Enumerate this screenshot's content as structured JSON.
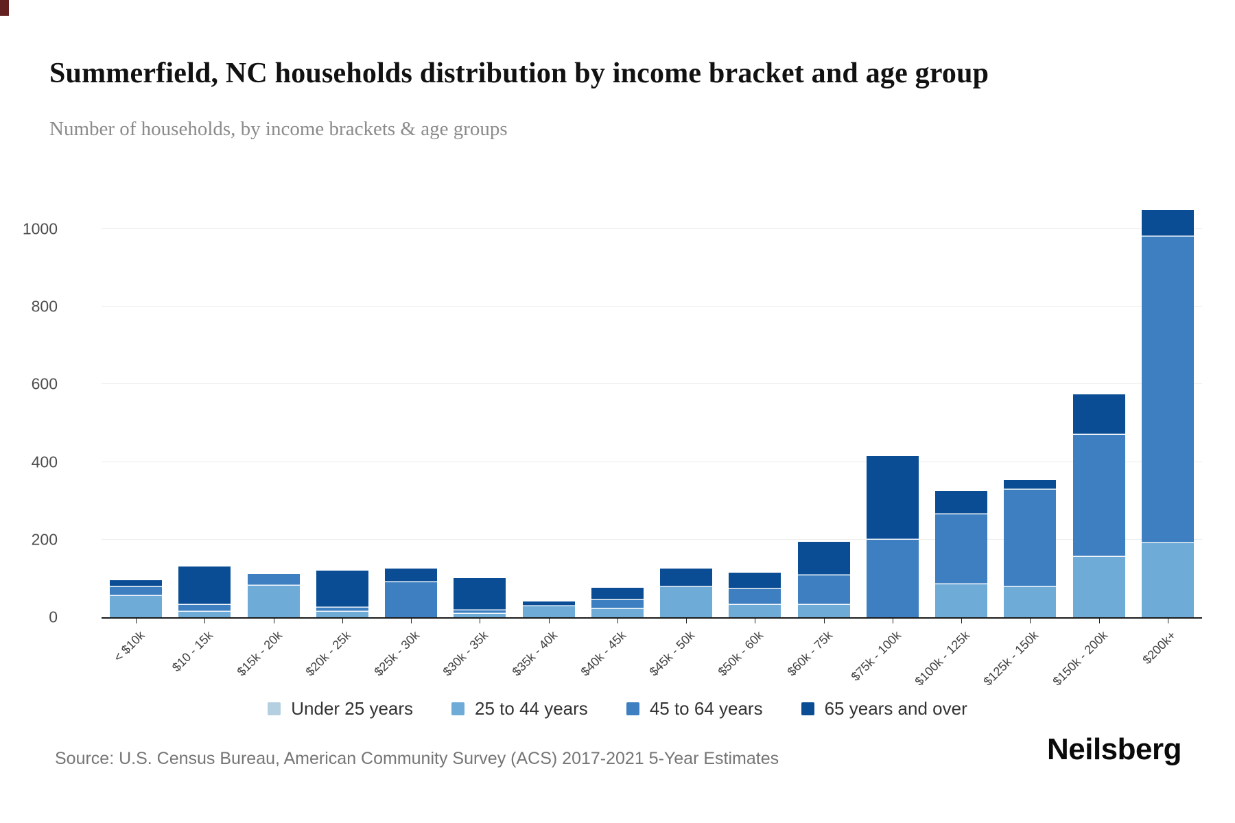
{
  "page": {
    "background": "#ffffff"
  },
  "header": {
    "title": "Summerfield, NC households distribution by income bracket and age group",
    "subtitle": "Number of households, by income brackets & age groups"
  },
  "source": {
    "text": "Source: U.S. Census Bureau, American Community Survey (ACS) 2017-2021 5-Year Estimates"
  },
  "branding": {
    "logo_text": "Neilsberg"
  },
  "chart_data": {
    "type": "bar",
    "stacked": true,
    "title": "Summerfield, NC households distribution by income bracket and age group",
    "subtitle": "Number of households, by income brackets & age groups",
    "xlabel": "",
    "ylabel": "",
    "grid": "horizontal",
    "legend_position": "bottom",
    "yticks": [
      0,
      200,
      400,
      600,
      800,
      1000
    ],
    "ylim": [
      0,
      1060
    ],
    "categories": [
      "< $10k",
      "$10 - 15k",
      "$15k - 20k",
      "$20k - 25k",
      "$25k - 30k",
      "$30k - 35k",
      "$35k - 40k",
      "$40k - 45k",
      "$45k - 50k",
      "$50k - 60k",
      "$60k - 75k",
      "$75k - 100k",
      "$100k - 125k",
      "$125k - 150k",
      "$150k - 200k",
      "$200k+"
    ],
    "series": [
      {
        "name": "Under 25 years",
        "color": "#b4cfe0",
        "values": [
          0,
          0,
          0,
          0,
          0,
          0,
          0,
          0,
          0,
          0,
          0,
          0,
          0,
          0,
          0,
          0
        ]
      },
      {
        "name": "25 to 44 years",
        "color": "#6fabd7",
        "values": [
          55,
          14,
          82,
          14,
          0,
          9,
          28,
          21,
          78,
          32,
          32,
          0,
          85,
          78,
          155,
          190
        ]
      },
      {
        "name": "45 to 64 years",
        "color": "#3d7fc1",
        "values": [
          22,
          18,
          30,
          10,
          90,
          9,
          0,
          23,
          0,
          40,
          75,
          200,
          180,
          250,
          315,
          790
        ]
      },
      {
        "name": "65 years and over",
        "color": "#0b4d94",
        "values": [
          19,
          98,
          0,
          96,
          35,
          83,
          13,
          32,
          47,
          43,
          88,
          215,
          60,
          25,
          105,
          70
        ]
      }
    ]
  }
}
